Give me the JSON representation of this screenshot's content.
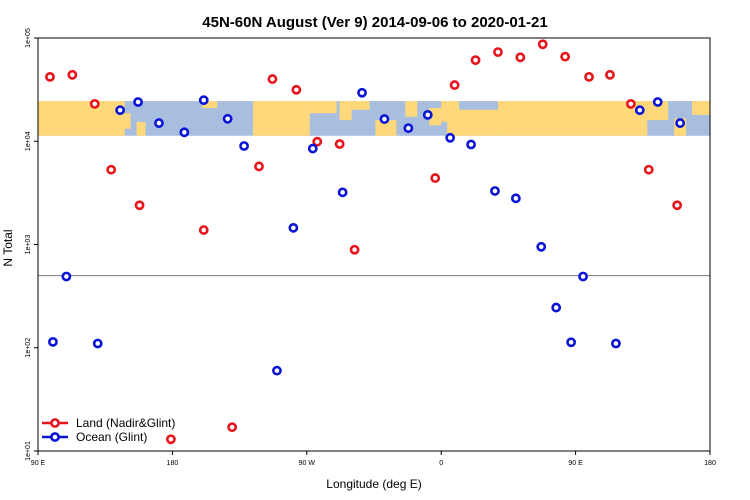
{
  "chart_data": {
    "type": "scatter",
    "title": "45N-60N August (Ver 9)   2014-09-06 to 2020-01-21",
    "xlabel": "Longitude (deg E)",
    "ylabel": "N Total",
    "x_scale": "linear",
    "y_scale": "log",
    "xlim": [
      90,
      540
    ],
    "ylim": [
      10,
      100000
    ],
    "x_ticks": [
      {
        "value": 90,
        "label": "90 E"
      },
      {
        "value": 180,
        "label": "180"
      },
      {
        "value": 270,
        "label": "90 W"
      },
      {
        "value": 360,
        "label": "0"
      },
      {
        "value": 450,
        "label": "90 E"
      },
      {
        "value": 540,
        "label": "180"
      }
    ],
    "y_ticks": [
      {
        "value": 10,
        "label": "1e+01"
      },
      {
        "value": 100,
        "label": "1e+02"
      },
      {
        "value": 1000,
        "label": "1e+03"
      },
      {
        "value": 10000,
        "label": "1e+04"
      },
      {
        "value": 100000,
        "label": "1e+05"
      }
    ],
    "reference_line": {
      "y": 500,
      "color": "#888888"
    },
    "map_band": {
      "y_range": [
        11300,
        24500
      ],
      "colors": {
        "ocean": "#a7bedf",
        "land": "#ffd87a"
      }
    },
    "legend": {
      "position": "bottom-left"
    },
    "series": [
      {
        "name": "Land (Nadir&Glint)",
        "color": "#e8141c",
        "points": [
          {
            "x": 98,
            "y": 42000
          },
          {
            "x": 113,
            "y": 44000
          },
          {
            "x": 128,
            "y": 23000
          },
          {
            "x": 139,
            "y": 5300
          },
          {
            "x": 158,
            "y": 2400
          },
          {
            "x": 179,
            "y": 13
          },
          {
            "x": 201,
            "y": 1380
          },
          {
            "x": 220,
            "y": 17
          },
          {
            "x": 238,
            "y": 5700
          },
          {
            "x": 247,
            "y": 40000
          },
          {
            "x": 263,
            "y": 31500
          },
          {
            "x": 277,
            "y": 9900
          },
          {
            "x": 292,
            "y": 9400
          },
          {
            "x": 302,
            "y": 890
          },
          {
            "x": 356,
            "y": 4400
          },
          {
            "x": 369,
            "y": 35000
          },
          {
            "x": 383,
            "y": 61000
          },
          {
            "x": 398,
            "y": 73000
          },
          {
            "x": 413,
            "y": 65000
          },
          {
            "x": 428,
            "y": 87000
          },
          {
            "x": 443,
            "y": 66000
          },
          {
            "x": 459,
            "y": 42000
          },
          {
            "x": 473,
            "y": 44000
          },
          {
            "x": 487,
            "y": 23000
          },
          {
            "x": 499,
            "y": 5300
          },
          {
            "x": 518,
            "y": 2400
          }
        ]
      },
      {
        "name": "Ocean (Glint)",
        "color": "#0a14d6",
        "points": [
          {
            "x": 100,
            "y": 114
          },
          {
            "x": 109,
            "y": 490
          },
          {
            "x": 130,
            "y": 110
          },
          {
            "x": 145,
            "y": 20000
          },
          {
            "x": 157,
            "y": 24000
          },
          {
            "x": 171,
            "y": 15000
          },
          {
            "x": 188,
            "y": 12200
          },
          {
            "x": 201,
            "y": 25000
          },
          {
            "x": 217,
            "y": 16500
          },
          {
            "x": 228,
            "y": 9000
          },
          {
            "x": 250,
            "y": 60
          },
          {
            "x": 261,
            "y": 1450
          },
          {
            "x": 274,
            "y": 8500
          },
          {
            "x": 294,
            "y": 3200
          },
          {
            "x": 307,
            "y": 29500
          },
          {
            "x": 322,
            "y": 16400
          },
          {
            "x": 338,
            "y": 13400
          },
          {
            "x": 351,
            "y": 18000
          },
          {
            "x": 366,
            "y": 10800
          },
          {
            "x": 380,
            "y": 9300
          },
          {
            "x": 396,
            "y": 3300
          },
          {
            "x": 410,
            "y": 2800
          },
          {
            "x": 427,
            "y": 950
          },
          {
            "x": 437,
            "y": 245
          },
          {
            "x": 447,
            "y": 113
          },
          {
            "x": 455,
            "y": 490
          },
          {
            "x": 477,
            "y": 110
          },
          {
            "x": 493,
            "y": 20000
          },
          {
            "x": 505,
            "y": 24000
          },
          {
            "x": 520,
            "y": 15000
          }
        ]
      }
    ]
  }
}
